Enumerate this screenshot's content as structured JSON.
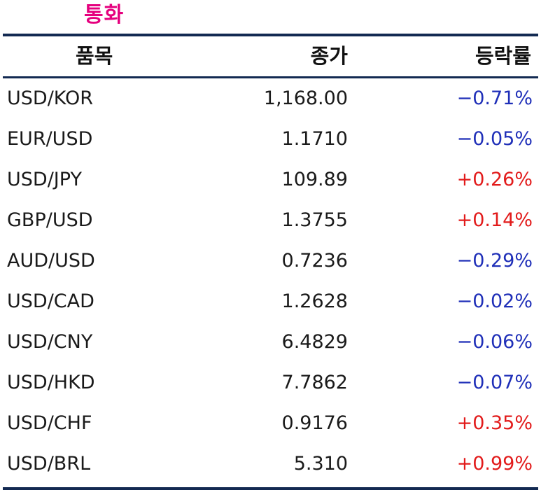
{
  "title": "통화",
  "headers": {
    "item": "품목",
    "close": "종가",
    "change": "등락률"
  },
  "colors": {
    "title": "#e5007e",
    "rule": "#132a52",
    "negative": "#1f2fb8",
    "positive": "#e21b1b"
  },
  "rows": [
    {
      "name": "USD/KOR",
      "close": "1,168.00",
      "change": "−0.71%",
      "direction": "down"
    },
    {
      "name": "EUR/USD",
      "close": "1.1710",
      "change": "−0.05%",
      "direction": "down"
    },
    {
      "name": "USD/JPY",
      "close": "109.89",
      "change": "+0.26%",
      "direction": "up"
    },
    {
      "name": "GBP/USD",
      "close": "1.3755",
      "change": "+0.14%",
      "direction": "up"
    },
    {
      "name": "AUD/USD",
      "close": "0.7236",
      "change": "−0.29%",
      "direction": "down"
    },
    {
      "name": "USD/CAD",
      "close": "1.2628",
      "change": "−0.02%",
      "direction": "down"
    },
    {
      "name": "USD/CNY",
      "close": "6.4829",
      "change": "−0.06%",
      "direction": "down"
    },
    {
      "name": "USD/HKD",
      "close": "7.7862",
      "change": "−0.07%",
      "direction": "down"
    },
    {
      "name": "USD/CHF",
      "close": "0.9176",
      "change": "+0.35%",
      "direction": "up"
    },
    {
      "name": "USD/BRL",
      "close": "5.310",
      "change": "+0.99%",
      "direction": "up"
    }
  ]
}
